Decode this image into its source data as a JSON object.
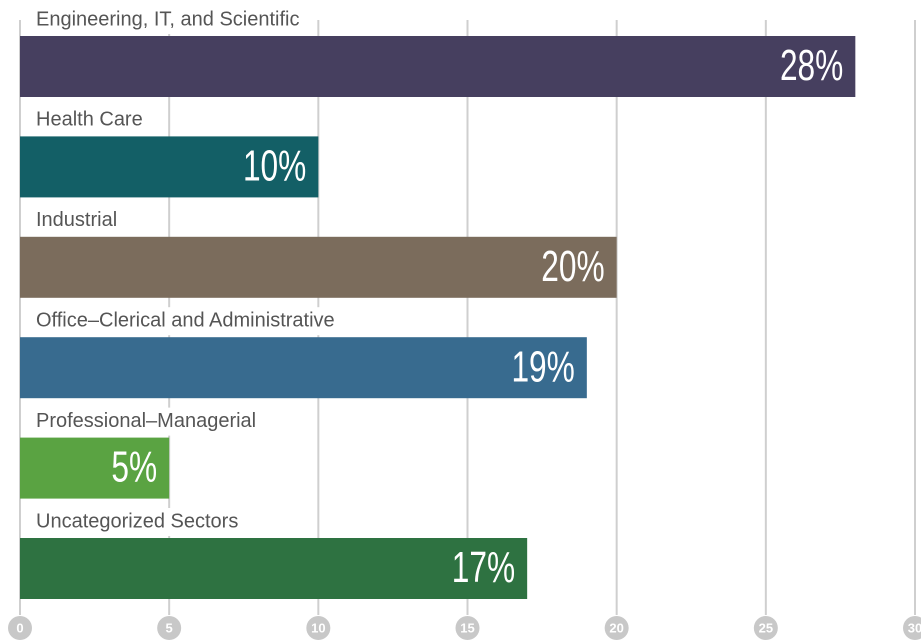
{
  "chart_data": {
    "type": "bar",
    "orientation": "horizontal",
    "categories": [
      "Engineering, IT, and Scientific",
      "Health Care",
      "Industrial",
      "Office–Clerical and Administrative",
      "Professional–Managerial",
      "Uncategorized Sectors"
    ],
    "values": [
      28,
      10,
      20,
      19,
      5,
      17
    ],
    "value_labels": [
      "28%",
      "10%",
      "20%",
      "19%",
      "5%",
      "17%"
    ],
    "colors": [
      "#463f5f",
      "#135f66",
      "#7b6c5c",
      "#386b8f",
      "#5aa342",
      "#2e7241"
    ],
    "xlim": [
      0,
      30
    ],
    "xticks": [
      0,
      5,
      10,
      15,
      20,
      25,
      30
    ],
    "grid": true
  }
}
